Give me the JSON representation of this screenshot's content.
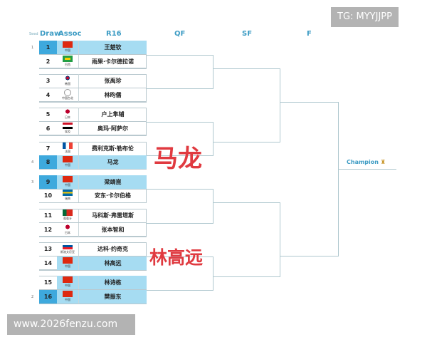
{
  "headers": {
    "seed": "Seed",
    "draw": "Draw",
    "assoc": "Assoc",
    "r16": "R16",
    "qf": "QF",
    "sf": "SF",
    "f": "F"
  },
  "champion": "Champion",
  "champion_icon": "trophy-icon",
  "colors": {
    "seed_highlight": "#3ea9dd",
    "highlight": "#a6dcf2",
    "overlay": "#e03a40",
    "header": "#3d9cc4"
  },
  "players": [
    {
      "draw": "1",
      "assoc": "中国",
      "flag": "china",
      "name": "王楚钦",
      "seed": "1",
      "hl": "seed"
    },
    {
      "draw": "2",
      "assoc": "巴西",
      "flag": "brazil",
      "name": "雨果·卡尔德拉诺",
      "seed": "",
      "hl": ""
    },
    {
      "draw": "3",
      "assoc": "韩国",
      "flag": "korea",
      "name": "张禹珍",
      "seed": "",
      "hl": ""
    },
    {
      "draw": "4",
      "assoc": "中国台北",
      "flag": "tpe",
      "name": "林昀儒",
      "seed": "",
      "hl": ""
    },
    {
      "draw": "5",
      "assoc": "日本",
      "flag": "japan",
      "name": "户上隼辅",
      "seed": "",
      "hl": ""
    },
    {
      "draw": "6",
      "assoc": "埃及",
      "flag": "egypt",
      "name": "奥玛·阿萨尔",
      "seed": "",
      "hl": ""
    },
    {
      "draw": "7",
      "assoc": "法国",
      "flag": "france",
      "name": "费利克斯·勒布伦",
      "seed": "",
      "hl": ""
    },
    {
      "draw": "8",
      "assoc": "中国",
      "flag": "china",
      "name": "马龙",
      "seed": "4",
      "hl": "seed"
    },
    {
      "draw": "9",
      "assoc": "中国",
      "flag": "china",
      "name": "梁靖崑",
      "seed": "3",
      "hl": "seed"
    },
    {
      "draw": "10",
      "assoc": "瑞典",
      "flag": "sweden",
      "name": "安东·卡尔伯格",
      "seed": "",
      "hl": ""
    },
    {
      "draw": "11",
      "assoc": "葡萄牙",
      "flag": "portugal",
      "name": "马科斯·弗雷塔斯",
      "seed": "",
      "hl": ""
    },
    {
      "draw": "12",
      "assoc": "日本",
      "flag": "japan",
      "name": "张本智和",
      "seed": "",
      "hl": ""
    },
    {
      "draw": "13",
      "assoc": "斯洛文尼亚",
      "flag": "slovenia",
      "name": "达科·约奇克",
      "seed": "",
      "hl": ""
    },
    {
      "draw": "14",
      "assoc": "中国",
      "flag": "china",
      "name": "林高远",
      "seed": "",
      "hl": "light"
    },
    {
      "draw": "15",
      "assoc": "中国",
      "flag": "china",
      "name": "林诗栋",
      "seed": "",
      "hl": "light"
    },
    {
      "draw": "16",
      "assoc": "中国",
      "flag": "china",
      "name": "樊振东",
      "seed": "2",
      "hl": "seed"
    }
  ],
  "overlays": {
    "top": "马龙",
    "bottom": "林高远"
  },
  "watermarks": {
    "top": "TG: MYYJJPP",
    "bottom": "www.2026fenzu.com"
  }
}
